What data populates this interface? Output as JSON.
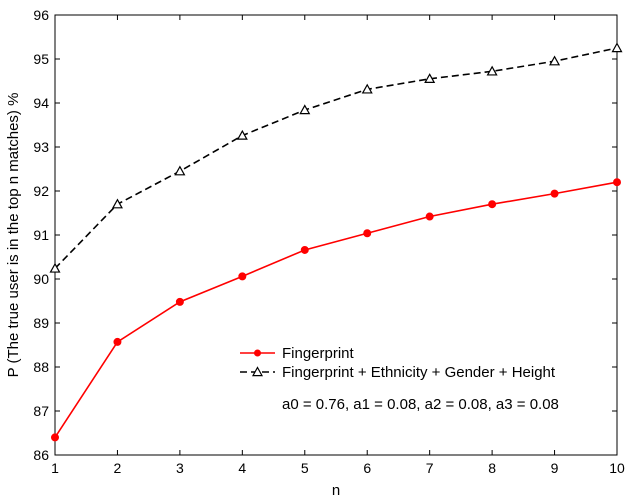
{
  "chart_data": {
    "type": "line",
    "title": "",
    "xlabel": "n",
    "ylabel": "P (The true user is in the top n matches) %",
    "x": [
      1,
      2,
      3,
      4,
      5,
      6,
      7,
      8,
      9,
      10
    ],
    "xlim": [
      1,
      10
    ],
    "ylim": [
      86,
      96
    ],
    "xticks": [
      "1",
      "2",
      "3",
      "4",
      "5",
      "6",
      "7",
      "8",
      "9",
      "10"
    ],
    "yticks": [
      "86",
      "87",
      "88",
      "89",
      "90",
      "91",
      "92",
      "93",
      "94",
      "95",
      "96"
    ],
    "grid": false,
    "legend_position": "bottom-right",
    "series": [
      {
        "name": "Fingerprint",
        "values": [
          86.4,
          88.57,
          89.48,
          90.06,
          90.66,
          91.04,
          91.42,
          91.7,
          91.94,
          92.2
        ],
        "color": "#ff0000",
        "line_style": "solid",
        "marker": "dot"
      },
      {
        "name": "Fingerprint + Ethnicity + Gender + Height",
        "values": [
          90.24,
          91.7,
          92.45,
          93.26,
          93.84,
          94.31,
          94.55,
          94.72,
          94.95,
          95.25
        ],
        "color": "#000000",
        "line_style": "dashed",
        "marker": "triangle"
      }
    ],
    "annotation": "a0 = 0.76, a1 = 0.08, a2 = 0.08, a3 = 0.08"
  }
}
